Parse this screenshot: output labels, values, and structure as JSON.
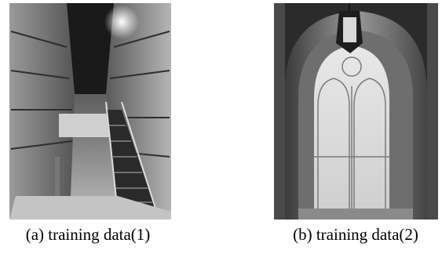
{
  "figures": [
    {
      "caption": "(a) training data(1)"
    },
    {
      "caption": "(b) training data(2)"
    }
  ]
}
